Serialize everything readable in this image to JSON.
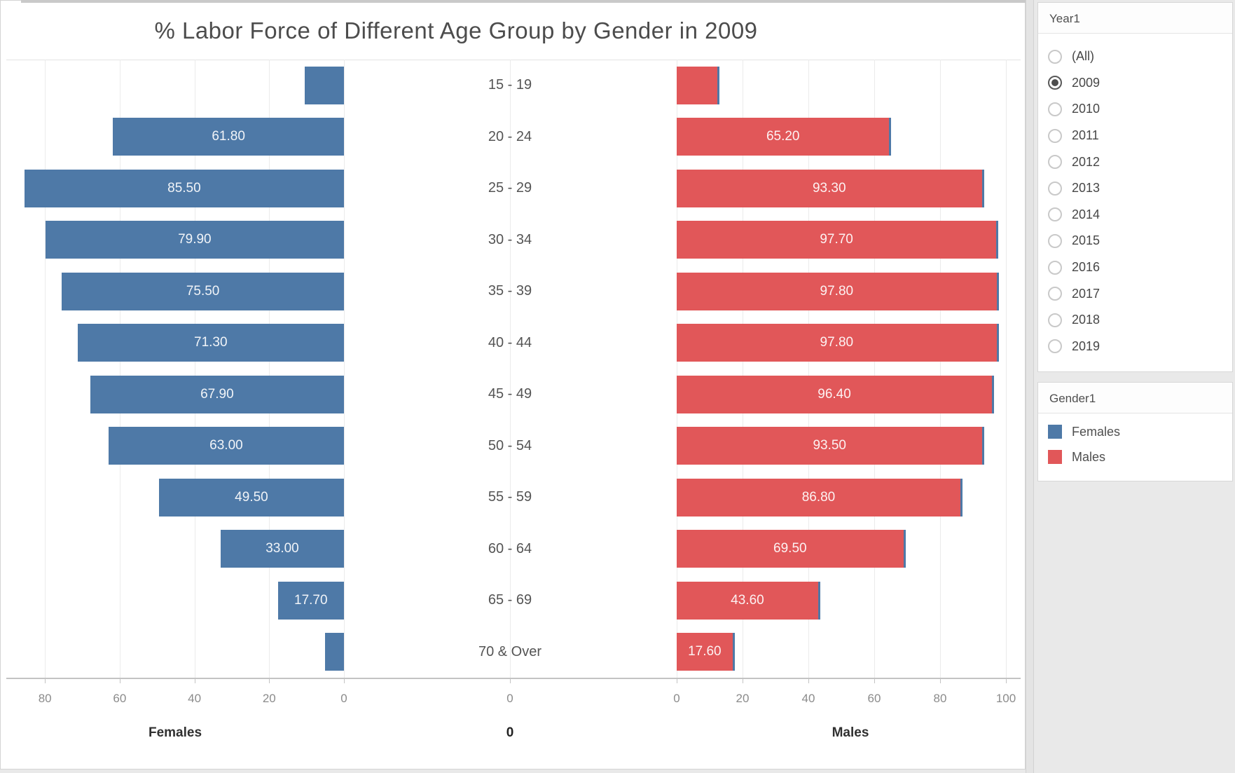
{
  "title": "% Labor Force of Different Age Group by Gender in 2009",
  "chart_data": {
    "type": "bar",
    "subtype": "population-pyramid-horizontal",
    "categories": [
      "15 - 19",
      "20 - 24",
      "25 - 29",
      "30 - 34",
      "35 - 39",
      "40 - 44",
      "45 - 49",
      "50 - 54",
      "55 - 59",
      "60 - 64",
      "65 - 69",
      "70 & Over"
    ],
    "series": [
      {
        "name": "Females",
        "color": "#4e79a7",
        "values": [
          10.5,
          61.8,
          85.5,
          79.9,
          75.5,
          71.3,
          67.9,
          63.0,
          49.5,
          33.0,
          17.7,
          5.0
        ],
        "bar_labels": [
          "",
          "61.80",
          "85.50",
          "79.90",
          "75.50",
          "71.30",
          "67.90",
          "63.00",
          "49.50",
          "33.00",
          "17.70",
          ""
        ]
      },
      {
        "name": "Males",
        "color": "#e15759",
        "values": [
          13.0,
          65.2,
          93.3,
          97.7,
          97.8,
          97.8,
          96.4,
          93.5,
          86.8,
          69.5,
          43.6,
          17.6
        ],
        "bar_labels": [
          "",
          "65.20",
          "93.30",
          "97.70",
          "97.80",
          "97.80",
          "96.40",
          "93.50",
          "86.80",
          "69.50",
          "43.60",
          "17.60"
        ]
      }
    ],
    "axes": {
      "females": {
        "title": "Females",
        "ticks": [
          80,
          60,
          40,
          20,
          0
        ],
        "range": [
          0,
          90.3
        ],
        "reversed": true
      },
      "middle": {
        "title": "0",
        "tick_label": "0"
      },
      "males": {
        "title": "Males",
        "ticks": [
          0,
          20,
          40,
          60,
          80,
          100
        ],
        "range": [
          0,
          105.7
        ]
      }
    },
    "grid": true,
    "legend_position": "right"
  },
  "filters": {
    "year": {
      "header": "Year1",
      "options": [
        "(All)",
        "2009",
        "2010",
        "2011",
        "2012",
        "2013",
        "2014",
        "2015",
        "2016",
        "2017",
        "2018",
        "2019"
      ],
      "selected": "2009"
    },
    "gender": {
      "header": "Gender1",
      "items": [
        {
          "label": "Females",
          "color": "#4e79a7"
        },
        {
          "label": "Males",
          "color": "#e15759"
        }
      ]
    }
  }
}
